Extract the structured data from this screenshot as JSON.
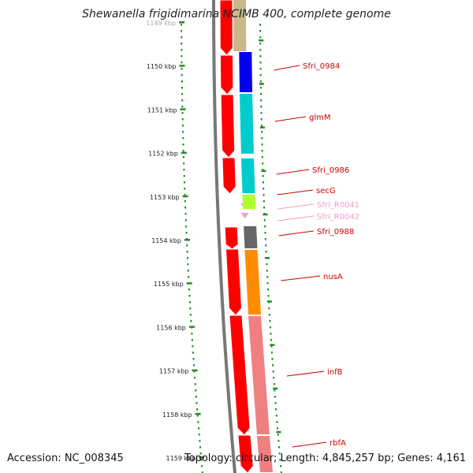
{
  "title": "Shewanella frigidimarina NCIMB 400, complete genome",
  "footer": {
    "accession": "Accession: NC_008345",
    "summary": "Topology: circular; Length: 4,845,257 bp; Genes: 4,161"
  },
  "colors": {
    "forward_strand": "#ff0000",
    "backbone": "#777777",
    "dots": "#228b22",
    "label": "#cc0000",
    "rna_label": "#f79acb",
    "tick_text": "#222222"
  },
  "ticks": [
    {
      "label": "1149 kbp",
      "faded": true
    },
    {
      "label": "1150 kbp"
    },
    {
      "label": "1151 kbp"
    },
    {
      "label": "1152 kbp"
    },
    {
      "label": "1153 kbp"
    },
    {
      "label": "1154 kbp"
    },
    {
      "label": "1155 kbp"
    },
    {
      "label": "1156 kbp"
    },
    {
      "label": "1157 kbp"
    },
    {
      "label": "1158 kbp"
    },
    {
      "label": "1159 kbp"
    }
  ],
  "genes": [
    {
      "label": "Sfri_0984",
      "type": "gene",
      "color": "#0000ee"
    },
    {
      "label": "glmM",
      "type": "gene",
      "color": "#00cccc"
    },
    {
      "label": "Sfri_0986",
      "type": "gene",
      "color": "#00cccc"
    },
    {
      "label": "secG",
      "type": "gene",
      "color": "#adff2f"
    },
    {
      "label": "Sfri_R0041",
      "type": "rna",
      "color": "#f79acb"
    },
    {
      "label": "Sfri_R0042",
      "type": "rna",
      "color": "#f79acb"
    },
    {
      "label": "Sfri_0988",
      "type": "gene",
      "color": "#666666"
    },
    {
      "label": "nusA",
      "type": "gene",
      "color": "#ff8c00"
    },
    {
      "label": "infB",
      "type": "gene",
      "color": "#f08080"
    },
    {
      "label": "rbfA",
      "type": "gene",
      "color": "#f08080"
    }
  ]
}
